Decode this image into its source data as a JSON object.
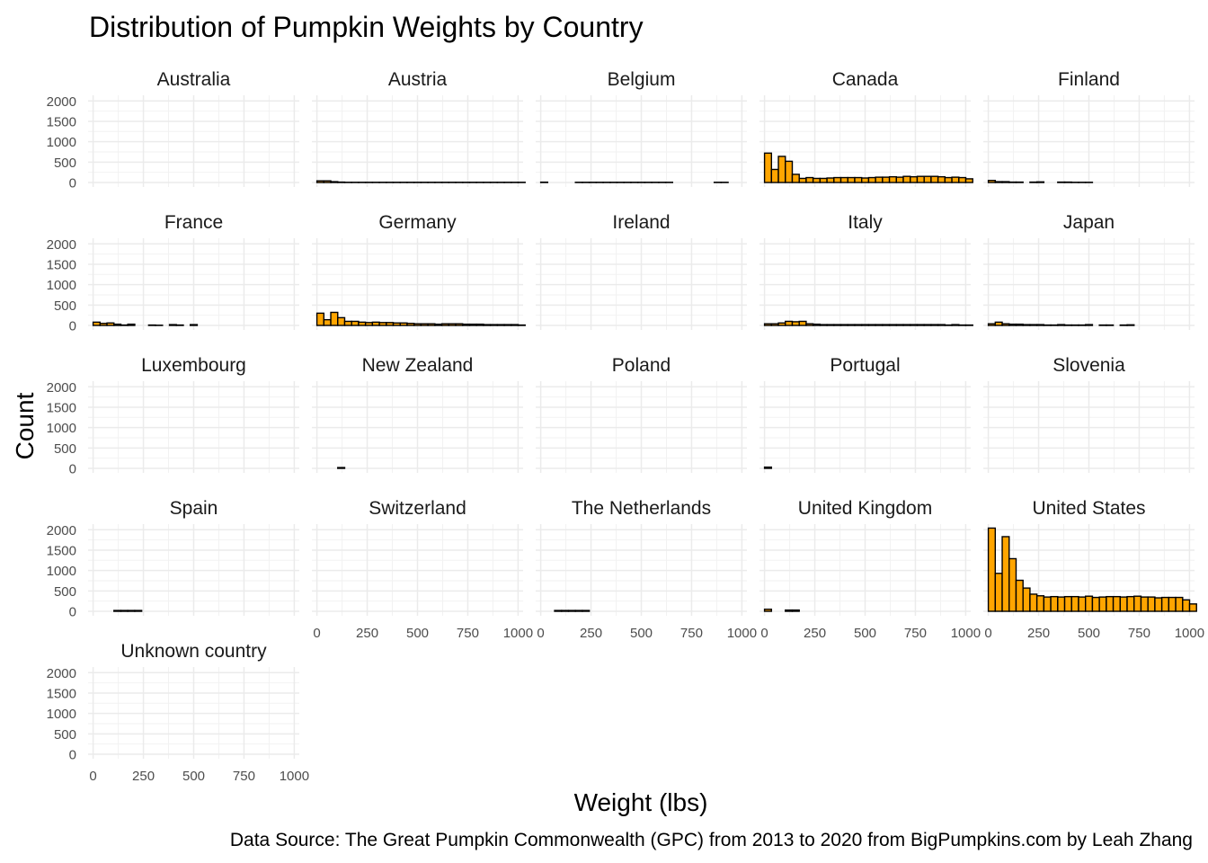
{
  "chart_data": {
    "type": "bar",
    "title": "Distribution of Pumpkin Weights by Country",
    "xlabel": "Weight (lbs)",
    "ylabel": "Count",
    "caption": "Data Source: The Great Pumpkin Commonwealth (GPC) from 2013 to 2020 from BigPumpkins.com by Leah Zhang",
    "xlim": [
      -25,
      1025
    ],
    "ylim": [
      0,
      2050
    ],
    "x_ticks": [
      0,
      250,
      500,
      750,
      1000
    ],
    "y_ticks": [
      0,
      500,
      1000,
      1500,
      2000
    ],
    "bin_width": 34.5,
    "bin_start": 0,
    "fill_color": "#FFA500",
    "outline_color": "#000000",
    "grid": true,
    "legend": "none",
    "facets": [
      {
        "name": "Australia",
        "values": [
          0,
          0,
          0,
          0,
          0,
          0,
          0,
          0,
          0,
          0,
          0,
          0,
          0,
          0,
          0,
          0,
          0,
          0,
          0,
          0,
          0,
          0,
          0,
          0,
          0,
          0,
          0,
          0,
          0,
          0
        ]
      },
      {
        "name": "Austria",
        "values": [
          40,
          40,
          20,
          10,
          5,
          5,
          5,
          5,
          5,
          5,
          5,
          5,
          5,
          5,
          5,
          5,
          5,
          5,
          5,
          5,
          5,
          5,
          5,
          5,
          5,
          5,
          5,
          5,
          5,
          5
        ]
      },
      {
        "name": "Belgium",
        "values": [
          8,
          0,
          0,
          0,
          0,
          5,
          5,
          5,
          5,
          5,
          5,
          5,
          5,
          5,
          5,
          5,
          5,
          5,
          5,
          0,
          0,
          0,
          0,
          0,
          0,
          5,
          5,
          0,
          0,
          0
        ]
      },
      {
        "name": "Canada",
        "values": [
          720,
          320,
          640,
          520,
          200,
          100,
          120,
          100,
          100,
          110,
          120,
          120,
          120,
          120,
          110,
          120,
          130,
          130,
          140,
          130,
          150,
          140,
          150,
          150,
          150,
          140,
          120,
          130,
          120,
          90
        ]
      },
      {
        "name": "Finland",
        "values": [
          50,
          20,
          20,
          10,
          10,
          0,
          10,
          15,
          0,
          0,
          10,
          10,
          5,
          5,
          5,
          0,
          0,
          0,
          0,
          0,
          0,
          0,
          0,
          0,
          0,
          0,
          0,
          0,
          0,
          0
        ]
      },
      {
        "name": "France",
        "values": [
          80,
          50,
          60,
          30,
          10,
          30,
          0,
          0,
          10,
          5,
          0,
          20,
          10,
          0,
          20,
          0,
          0,
          0,
          0,
          0,
          0,
          0,
          0,
          0,
          0,
          0,
          0,
          0,
          0,
          0
        ]
      },
      {
        "name": "Germany",
        "values": [
          300,
          140,
          320,
          190,
          100,
          100,
          80,
          70,
          80,
          70,
          70,
          60,
          60,
          50,
          40,
          40,
          40,
          30,
          40,
          40,
          40,
          30,
          30,
          30,
          20,
          20,
          20,
          20,
          20,
          10
        ]
      },
      {
        "name": "Ireland",
        "values": [
          0,
          0,
          0,
          0,
          0,
          0,
          0,
          0,
          0,
          0,
          0,
          0,
          0,
          0,
          0,
          0,
          0,
          0,
          0,
          0,
          0,
          0,
          0,
          0,
          0,
          0,
          0,
          0,
          0,
          0
        ]
      },
      {
        "name": "Italy",
        "values": [
          40,
          40,
          60,
          100,
          90,
          100,
          40,
          30,
          20,
          20,
          20,
          20,
          20,
          20,
          20,
          20,
          20,
          20,
          20,
          20,
          20,
          20,
          20,
          20,
          20,
          20,
          10,
          20,
          10,
          10
        ]
      },
      {
        "name": "Japan",
        "values": [
          40,
          80,
          40,
          30,
          30,
          20,
          20,
          20,
          10,
          10,
          20,
          10,
          10,
          10,
          20,
          0,
          10,
          10,
          0,
          10,
          15,
          0,
          0,
          0,
          0,
          0,
          0,
          0,
          0,
          0
        ]
      },
      {
        "name": "Luxembourg",
        "values": [
          0,
          0,
          0,
          0,
          0,
          0,
          0,
          0,
          0,
          0,
          0,
          0,
          0,
          0,
          0,
          0,
          0,
          0,
          0,
          0,
          0,
          0,
          0,
          0,
          0,
          0,
          0,
          0,
          0,
          0
        ]
      },
      {
        "name": "New Zealand",
        "values": [
          0,
          0,
          0,
          20,
          0,
          0,
          0,
          0,
          0,
          0,
          0,
          0,
          0,
          0,
          0,
          0,
          0,
          0,
          0,
          0,
          0,
          0,
          0,
          0,
          0,
          0,
          0,
          0,
          0,
          0
        ]
      },
      {
        "name": "Poland",
        "values": [
          0,
          0,
          0,
          0,
          0,
          0,
          0,
          0,
          0,
          0,
          0,
          0,
          0,
          0,
          0,
          0,
          0,
          0,
          0,
          0,
          0,
          0,
          0,
          0,
          0,
          0,
          0,
          0,
          0,
          0
        ]
      },
      {
        "name": "Portugal",
        "values": [
          30,
          0,
          0,
          0,
          0,
          0,
          0,
          0,
          0,
          0,
          0,
          0,
          0,
          0,
          0,
          0,
          0,
          0,
          0,
          0,
          0,
          0,
          0,
          0,
          0,
          0,
          0,
          0,
          0,
          0
        ]
      },
      {
        "name": "Slovenia",
        "values": [
          0,
          0,
          0,
          0,
          0,
          0,
          0,
          0,
          0,
          0,
          0,
          0,
          0,
          0,
          0,
          0,
          0,
          0,
          0,
          0,
          0,
          0,
          0,
          0,
          0,
          0,
          0,
          0,
          0,
          0
        ]
      },
      {
        "name": "Spain",
        "values": [
          0,
          0,
          0,
          20,
          20,
          20,
          20,
          0,
          0,
          0,
          0,
          0,
          0,
          0,
          0,
          0,
          0,
          0,
          0,
          0,
          0,
          0,
          0,
          0,
          0,
          0,
          0,
          0,
          0,
          0
        ]
      },
      {
        "name": "Switzerland",
        "values": [
          0,
          0,
          0,
          0,
          0,
          0,
          0,
          0,
          0,
          0,
          0,
          0,
          0,
          0,
          0,
          0,
          0,
          0,
          0,
          0,
          0,
          0,
          0,
          0,
          0,
          0,
          0,
          0,
          0,
          0
        ]
      },
      {
        "name": "The Netherlands",
        "values": [
          0,
          0,
          20,
          20,
          20,
          20,
          20,
          0,
          0,
          0,
          0,
          0,
          0,
          0,
          0,
          0,
          0,
          0,
          0,
          0,
          0,
          0,
          0,
          0,
          0,
          0,
          0,
          0,
          0,
          0
        ]
      },
      {
        "name": "United Kingdom",
        "values": [
          50,
          0,
          0,
          30,
          30,
          0,
          0,
          0,
          0,
          0,
          0,
          0,
          0,
          0,
          0,
          0,
          0,
          0,
          0,
          0,
          0,
          0,
          0,
          0,
          0,
          0,
          0,
          0,
          0,
          0
        ]
      },
      {
        "name": "United States",
        "values": [
          2040,
          930,
          1830,
          1290,
          760,
          570,
          420,
          380,
          350,
          360,
          350,
          360,
          360,
          350,
          370,
          340,
          350,
          360,
          360,
          350,
          360,
          370,
          350,
          350,
          330,
          340,
          340,
          340,
          280,
          180
        ]
      },
      {
        "name": "Unknown country",
        "values": [
          0,
          0,
          0,
          0,
          0,
          0,
          0,
          0,
          0,
          0,
          0,
          0,
          0,
          0,
          0,
          0,
          0,
          0,
          0,
          0,
          0,
          0,
          0,
          0,
          0,
          0,
          0,
          0,
          0,
          0
        ]
      }
    ]
  }
}
